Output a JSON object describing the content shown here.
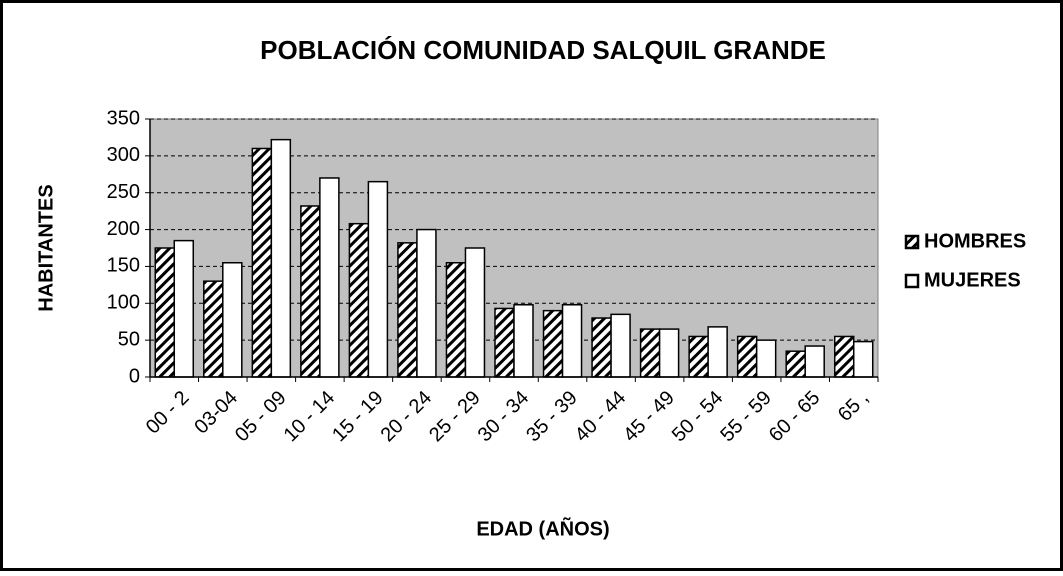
{
  "chart_data": {
    "type": "bar",
    "title": "POBLACIÓN COMUNIDAD SALQUIL GRANDE",
    "x_label": "EDAD (AÑOS)",
    "y_label": "HABITANTES",
    "categories": [
      "00 - 2",
      "03-04",
      "05 - 09",
      "10 - 14",
      "15 - 19",
      "20 - 24",
      "25 - 29",
      "30 - 34",
      "35 - 39",
      "40 - 44",
      "45 - 49",
      "50 - 54",
      "55 - 59",
      "60 - 65",
      "65 ,"
    ],
    "series": [
      {
        "name": "HOMBRES",
        "color": "#ffffff",
        "pattern": "diagonal",
        "values": [
          175,
          130,
          310,
          232,
          208,
          182,
          155,
          93,
          90,
          80,
          65,
          55,
          55,
          35,
          55
        ]
      },
      {
        "name": "MUJERES",
        "color": "#ffffff",
        "values": [
          185,
          155,
          322,
          270,
          265,
          200,
          175,
          98,
          98,
          85,
          65,
          68,
          50,
          42,
          48
        ]
      }
    ],
    "ylim": [
      0,
      350
    ],
    "yticks": [
      0,
      50,
      100,
      150,
      200,
      250,
      300,
      350
    ],
    "grid": true,
    "plot_background": "#c0c0c0",
    "legend": "right"
  }
}
